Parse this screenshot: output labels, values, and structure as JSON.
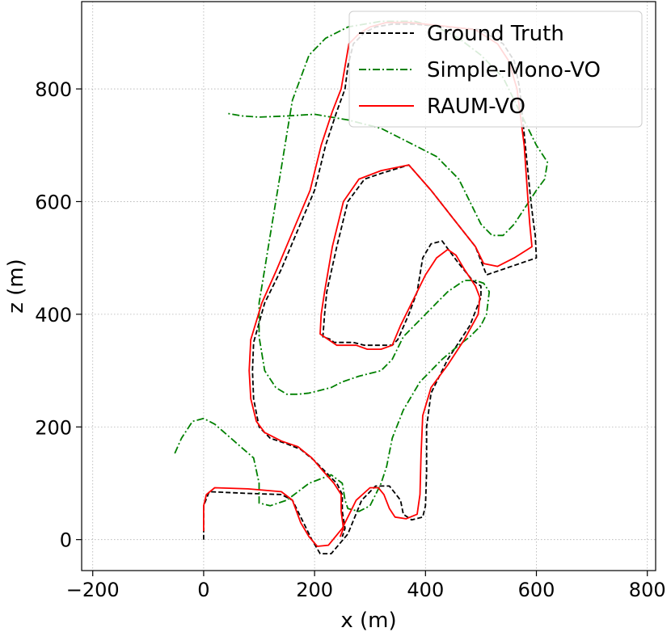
{
  "chart_data": {
    "type": "line",
    "title": "",
    "xlabel": "x (m)",
    "ylabel": "z (m)",
    "xlim": [
      -220,
      815
    ],
    "ylim": [
      -55,
      955
    ],
    "xticks": [
      -200,
      0,
      200,
      400,
      600,
      800
    ],
    "yticks": [
      0,
      200,
      400,
      600,
      800
    ],
    "xtick_labels": [
      "−200",
      "0",
      "200",
      "400",
      "600",
      "800"
    ],
    "ytick_labels": [
      "0",
      "200",
      "400",
      "600",
      "800"
    ],
    "grid": true,
    "legend_position": "top-right",
    "series": [
      {
        "name": "Ground Truth",
        "color": "#000000",
        "style": "dashed",
        "points": [
          [
            0,
            0
          ],
          [
            0,
            60
          ],
          [
            10,
            85
          ],
          [
            80,
            82
          ],
          [
            140,
            80
          ],
          [
            160,
            70
          ],
          [
            175,
            40
          ],
          [
            195,
            0
          ],
          [
            210,
            -25
          ],
          [
            230,
            -25
          ],
          [
            260,
            10
          ],
          [
            285,
            70
          ],
          [
            310,
            95
          ],
          [
            335,
            95
          ],
          [
            355,
            70
          ],
          [
            360,
            45
          ],
          [
            375,
            35
          ],
          [
            395,
            40
          ],
          [
            400,
            60
          ],
          [
            402,
            120
          ],
          [
            402,
            200
          ],
          [
            410,
            260
          ],
          [
            440,
            320
          ],
          [
            480,
            380
          ],
          [
            500,
            430
          ],
          [
            500,
            450
          ],
          [
            485,
            460
          ],
          [
            460,
            490
          ],
          [
            445,
            510
          ],
          [
            430,
            530
          ],
          [
            410,
            525
          ],
          [
            395,
            500
          ],
          [
            385,
            440
          ],
          [
            370,
            400
          ],
          [
            350,
            355
          ],
          [
            340,
            345
          ],
          [
            320,
            345
          ],
          [
            290,
            345
          ],
          [
            270,
            350
          ],
          [
            235,
            350
          ],
          [
            230,
            355
          ],
          [
            215,
            360
          ],
          [
            218,
            400
          ],
          [
            222,
            440
          ],
          [
            240,
            520
          ],
          [
            260,
            600
          ],
          [
            290,
            640
          ],
          [
            320,
            650
          ],
          [
            370,
            665
          ],
          [
            410,
            620
          ],
          [
            450,
            570
          ],
          [
            490,
            520
          ],
          [
            510,
            470
          ],
          [
            540,
            480
          ],
          [
            570,
            490
          ],
          [
            600,
            500
          ],
          [
            598,
            540
          ],
          [
            595,
            560
          ],
          [
            590,
            600
          ],
          [
            580,
            700
          ],
          [
            570,
            800
          ],
          [
            560,
            850
          ],
          [
            540,
            880
          ],
          [
            500,
            905
          ],
          [
            440,
            910
          ],
          [
            380,
            915
          ],
          [
            340,
            915
          ],
          [
            310,
            910
          ],
          [
            290,
            900
          ],
          [
            270,
            880
          ],
          [
            260,
            840
          ],
          [
            255,
            800
          ],
          [
            240,
            760
          ],
          [
            220,
            700
          ],
          [
            200,
            620
          ],
          [
            170,
            550
          ],
          [
            140,
            480
          ],
          [
            110,
            420
          ],
          [
            90,
            350
          ],
          [
            88,
            300
          ],
          [
            90,
            250
          ],
          [
            100,
            200
          ],
          [
            120,
            180
          ],
          [
            150,
            170
          ],
          [
            175,
            160
          ],
          [
            200,
            140
          ],
          [
            220,
            120
          ],
          [
            240,
            100
          ],
          [
            250,
            80
          ],
          [
            250,
            50
          ],
          [
            255,
            20
          ],
          [
            250,
            5
          ]
        ]
      },
      {
        "name": "Simple-Mono-VO",
        "color": "#008000",
        "style": "dashdot",
        "points": [
          [
            -52,
            153
          ],
          [
            -40,
            180
          ],
          [
            -20,
            210
          ],
          [
            0,
            215
          ],
          [
            20,
            205
          ],
          [
            55,
            175
          ],
          [
            90,
            145
          ],
          [
            100,
            100
          ],
          [
            100,
            65
          ],
          [
            120,
            60
          ],
          [
            150,
            70
          ],
          [
            190,
            100
          ],
          [
            230,
            115
          ],
          [
            250,
            100
          ],
          [
            255,
            70
          ],
          [
            260,
            55
          ],
          [
            280,
            50
          ],
          [
            300,
            60
          ],
          [
            310,
            80
          ],
          [
            320,
            100
          ],
          [
            330,
            130
          ],
          [
            340,
            180
          ],
          [
            360,
            230
          ],
          [
            390,
            280
          ],
          [
            430,
            320
          ],
          [
            460,
            345
          ],
          [
            480,
            360
          ],
          [
            500,
            380
          ],
          [
            510,
            400
          ],
          [
            515,
            440
          ],
          [
            505,
            455
          ],
          [
            490,
            460
          ],
          [
            470,
            460
          ],
          [
            440,
            440
          ],
          [
            420,
            420
          ],
          [
            400,
            400
          ],
          [
            380,
            380
          ],
          [
            360,
            360
          ],
          [
            340,
            320
          ],
          [
            320,
            300
          ],
          [
            280,
            290
          ],
          [
            250,
            280
          ],
          [
            230,
            270
          ],
          [
            210,
            265
          ],
          [
            190,
            260
          ],
          [
            170,
            258
          ],
          [
            150,
            258
          ],
          [
            130,
            270
          ],
          [
            110,
            300
          ],
          [
            100,
            360
          ],
          [
            100,
            420
          ],
          [
            110,
            480
          ],
          [
            120,
            540
          ],
          [
            130,
            600
          ],
          [
            140,
            660
          ],
          [
            150,
            720
          ],
          [
            160,
            780
          ],
          [
            175,
            820
          ],
          [
            190,
            860
          ],
          [
            220,
            890
          ],
          [
            260,
            910
          ],
          [
            320,
            920
          ],
          [
            380,
            920
          ],
          [
            420,
            910
          ],
          [
            460,
            890
          ],
          [
            500,
            860
          ],
          [
            540,
            820
          ],
          [
            560,
            780
          ],
          [
            580,
            740
          ],
          [
            600,
            700
          ],
          [
            620,
            670
          ],
          [
            615,
            640
          ],
          [
            600,
            620
          ],
          [
            580,
            590
          ],
          [
            560,
            560
          ],
          [
            540,
            540
          ],
          [
            520,
            540
          ],
          [
            500,
            560
          ],
          [
            480,
            600
          ],
          [
            460,
            640
          ],
          [
            420,
            680
          ],
          [
            380,
            700
          ],
          [
            320,
            730
          ],
          [
            260,
            745
          ],
          [
            200,
            755
          ],
          [
            150,
            752
          ],
          [
            100,
            750
          ],
          [
            70,
            752
          ],
          [
            40,
            757
          ]
        ]
      },
      {
        "name": "RAUM-VO",
        "color": "#ff0000",
        "style": "solid",
        "points": [
          [
            0,
            15
          ],
          [
            0,
            60
          ],
          [
            5,
            80
          ],
          [
            20,
            92
          ],
          [
            80,
            90
          ],
          [
            140,
            85
          ],
          [
            160,
            70
          ],
          [
            175,
            30
          ],
          [
            190,
            5
          ],
          [
            205,
            -12
          ],
          [
            225,
            -10
          ],
          [
            250,
            20
          ],
          [
            275,
            70
          ],
          [
            300,
            92
          ],
          [
            315,
            92
          ],
          [
            325,
            80
          ],
          [
            335,
            55
          ],
          [
            345,
            40
          ],
          [
            365,
            37
          ],
          [
            385,
            45
          ],
          [
            390,
            80
          ],
          [
            392,
            150
          ],
          [
            395,
            220
          ],
          [
            410,
            270
          ],
          [
            440,
            310
          ],
          [
            470,
            355
          ],
          [
            495,
            400
          ],
          [
            498,
            430
          ],
          [
            490,
            450
          ],
          [
            470,
            480
          ],
          [
            455,
            505
          ],
          [
            440,
            515
          ],
          [
            420,
            500
          ],
          [
            400,
            470
          ],
          [
            375,
            420
          ],
          [
            355,
            380
          ],
          [
            340,
            345
          ],
          [
            320,
            338
          ],
          [
            295,
            338
          ],
          [
            275,
            345
          ],
          [
            240,
            345
          ],
          [
            225,
            355
          ],
          [
            210,
            365
          ],
          [
            212,
            400
          ],
          [
            218,
            440
          ],
          [
            232,
            520
          ],
          [
            252,
            600
          ],
          [
            280,
            640
          ],
          [
            320,
            655
          ],
          [
            370,
            665
          ],
          [
            410,
            620
          ],
          [
            450,
            570
          ],
          [
            490,
            520
          ],
          [
            505,
            490
          ],
          [
            530,
            485
          ],
          [
            560,
            500
          ],
          [
            592,
            520
          ],
          [
            588,
            560
          ],
          [
            585,
            600
          ],
          [
            578,
            700
          ],
          [
            565,
            800
          ],
          [
            550,
            850
          ],
          [
            530,
            880
          ],
          [
            490,
            905
          ],
          [
            430,
            912
          ],
          [
            370,
            918
          ],
          [
            330,
            918
          ],
          [
            300,
            910
          ],
          [
            280,
            898
          ],
          [
            262,
            880
          ],
          [
            255,
            840
          ],
          [
            248,
            800
          ],
          [
            232,
            760
          ],
          [
            212,
            700
          ],
          [
            192,
            620
          ],
          [
            162,
            550
          ],
          [
            132,
            480
          ],
          [
            105,
            420
          ],
          [
            85,
            355
          ],
          [
            82,
            300
          ],
          [
            85,
            250
          ],
          [
            95,
            210
          ],
          [
            110,
            190
          ],
          [
            140,
            175
          ],
          [
            170,
            165
          ],
          [
            195,
            145
          ],
          [
            215,
            122
          ],
          [
            235,
            100
          ],
          [
            248,
            80
          ],
          [
            248,
            50
          ],
          [
            252,
            20
          ],
          [
            246,
            5
          ]
        ]
      }
    ]
  }
}
